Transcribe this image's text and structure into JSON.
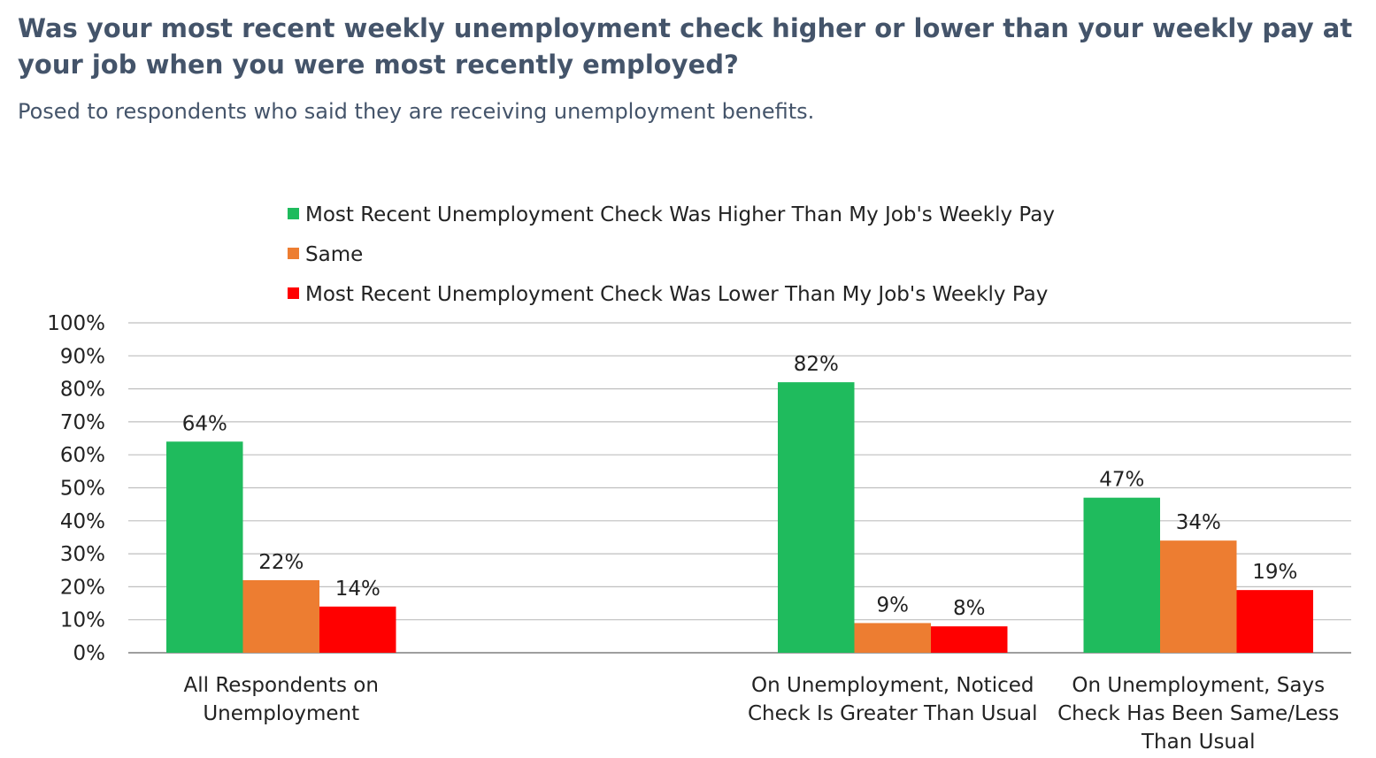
{
  "chart_data": {
    "type": "bar",
    "title": "Was your most recent weekly unemployment check higher or lower than your weekly pay at your job when you were most recently employed?",
    "subtitle": "Posed to respondents who said they are receiving unemployment benefits.",
    "categories": [
      [
        "All Respondents on",
        "Unemployment"
      ],
      [],
      [
        "On Unemployment, Noticed",
        "Check Is Greater Than Usual"
      ],
      [
        "On Unemployment, Says",
        "Check Has Been Same/Less",
        "Than Usual"
      ]
    ],
    "series": [
      {
        "name": "Most Recent Unemployment Check Was Higher Than My Job's Weekly Pay",
        "color": "#1fbb5d",
        "values": [
          64,
          null,
          82,
          47
        ],
        "labels": [
          "64%",
          "",
          "82%",
          "47%"
        ]
      },
      {
        "name": "Same",
        "color": "#ed7d31",
        "values": [
          22,
          null,
          9,
          34
        ],
        "labels": [
          "22%",
          "",
          "9%",
          "34%"
        ]
      },
      {
        "name": "Most Recent Unemployment Check Was Lower Than My Job's Weekly Pay",
        "color": "#ff0000",
        "values": [
          14,
          null,
          8,
          19
        ],
        "labels": [
          "14%",
          "",
          "8%",
          "19%"
        ]
      }
    ],
    "y_ticks": [
      "0%",
      "10%",
      "20%",
      "30%",
      "40%",
      "50%",
      "60%",
      "70%",
      "80%",
      "90%",
      "100%"
    ],
    "ylim": [
      0,
      100
    ],
    "grid": true,
    "legend_position": "top"
  }
}
